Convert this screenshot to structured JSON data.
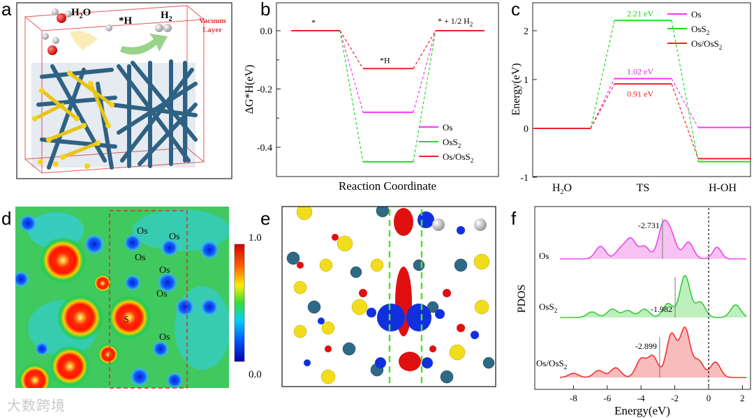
{
  "panel_labels": {
    "a": "a",
    "b": "b",
    "c": "c",
    "d": "d",
    "e": "e",
    "f": "f"
  },
  "panel_a": {
    "h2o": "H2O",
    "h2o_base": "H",
    "h2o_sub": "2",
    "h2o_tail": "O",
    "star_h": "*H",
    "h2_base": "H",
    "h2_sub": "2",
    "vacuum_line1": "Vacuum",
    "vacuum_line2": "Layer"
  },
  "panel_d": {
    "cbar_max": "1.0",
    "cbar_min": "0.0",
    "labels": [
      "Os",
      "Os",
      "Os",
      "Os",
      "Os",
      "S",
      "Os"
    ]
  },
  "panel_e": {},
  "chart_data": [
    {
      "type": "line",
      "panel": "b",
      "title": "",
      "xlabel": "Reaction Coordinate",
      "ylabel": "ΔG*H(eV)",
      "ylim": [
        -0.5,
        0.05
      ],
      "yticks": [
        "0.0",
        "-0.2",
        "-0.4"
      ],
      "ytick_values": [
        0.0,
        -0.2,
        -0.4
      ],
      "state_labels": [
        "*",
        "*H",
        "* + 1/2 H2"
      ],
      "series": [
        {
          "name": "Os",
          "color": "#ff33ff",
          "values": [
            0.0,
            -0.28,
            0.0
          ]
        },
        {
          "name": "OsS2",
          "color": "#22dd22",
          "values": [
            0.0,
            -0.45,
            0.0
          ]
        },
        {
          "name": "Os/OsS2",
          "color": "#ee2222",
          "values": [
            0.0,
            -0.13,
            0.0
          ]
        }
      ],
      "legend": [
        "Os",
        "OsS2",
        "Os/OsS2"
      ]
    },
    {
      "type": "line",
      "panel": "c",
      "xlabel": "",
      "ylabel": "Energy(eV)",
      "ylim": [
        -1,
        2.5
      ],
      "yticks": [
        "2",
        "1",
        "0",
        "-1"
      ],
      "ytick_values": [
        2,
        1,
        0,
        -1
      ],
      "categories": [
        "H2O",
        "TS",
        "H-OH"
      ],
      "series": [
        {
          "name": "Os",
          "color": "#ff33ff",
          "values": [
            0.0,
            1.02,
            0.02
          ]
        },
        {
          "name": "OsS2",
          "color": "#22dd22",
          "values": [
            0.0,
            2.21,
            -0.68
          ]
        },
        {
          "name": "Os/OsS2",
          "color": "#ee2222",
          "values": [
            0.0,
            0.91,
            -0.62
          ]
        }
      ],
      "annotations": [
        "2.21 eV",
        "1.02 eV",
        "0.91 eV"
      ],
      "legend": [
        "Os",
        "OsS2",
        "Os/OsS2"
      ]
    },
    {
      "type": "area",
      "panel": "f",
      "xlabel": "Energy(eV)",
      "ylabel": "PDOS",
      "xlim": [
        -9,
        2.5
      ],
      "xticks": [
        "-8",
        "-6",
        "-4",
        "-2",
        "0",
        "2"
      ],
      "xtick_values": [
        -8,
        -6,
        -4,
        -2,
        0,
        2
      ],
      "series": [
        {
          "name": "Os",
          "color": "#ee44ee",
          "d_band_center": -2.731,
          "label": "-2.731"
        },
        {
          "name": "OsS2",
          "color": "#33cc33",
          "d_band_center": -1.982,
          "label": "-1.982"
        },
        {
          "name": "Os/OsS2",
          "color": "#ee3333",
          "d_band_center": -2.899,
          "label": "-2.899"
        }
      ]
    }
  ],
  "watermark": "大数跨境"
}
